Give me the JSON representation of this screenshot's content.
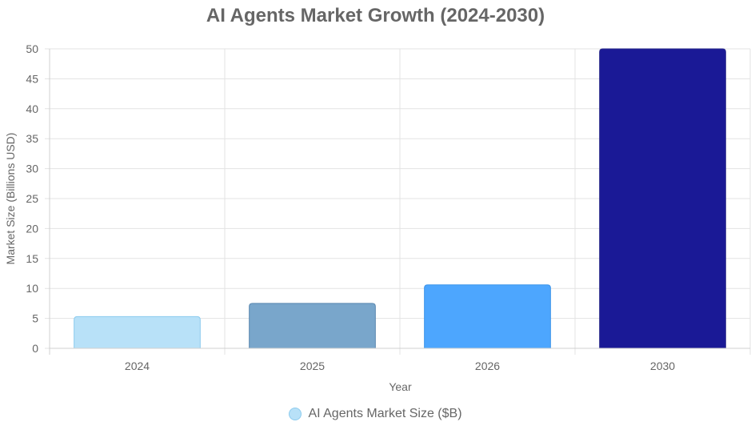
{
  "title": "AI Agents Market Growth (2024-2030)",
  "legend": {
    "label": "AI Agents Market Size ($B)",
    "color": "#b8e1f8"
  },
  "chart_data": {
    "type": "bar",
    "title": "AI Agents Market Growth (2024-2030)",
    "xlabel": "Year",
    "ylabel": "Market Size (Billions USD)",
    "categories": [
      "2024",
      "2025",
      "2026",
      "2030"
    ],
    "series": [
      {
        "name": "AI Agents Market Size ($B)",
        "values": [
          5.3,
          7.5,
          10.6,
          50
        ]
      }
    ],
    "colors": [
      "#b8e1f8",
      "#79a6cb",
      "#4da6fe",
      "#1a1996"
    ],
    "border_colors": [
      "#8ccbee",
      "#5a88b0",
      "#3a93ea",
      "#2a2a8a"
    ],
    "ylim": [
      0,
      50
    ],
    "yticks": [
      0,
      5,
      10,
      15,
      20,
      25,
      30,
      35,
      40,
      45,
      50
    ],
    "grid": true,
    "legend_position": "bottom"
  }
}
